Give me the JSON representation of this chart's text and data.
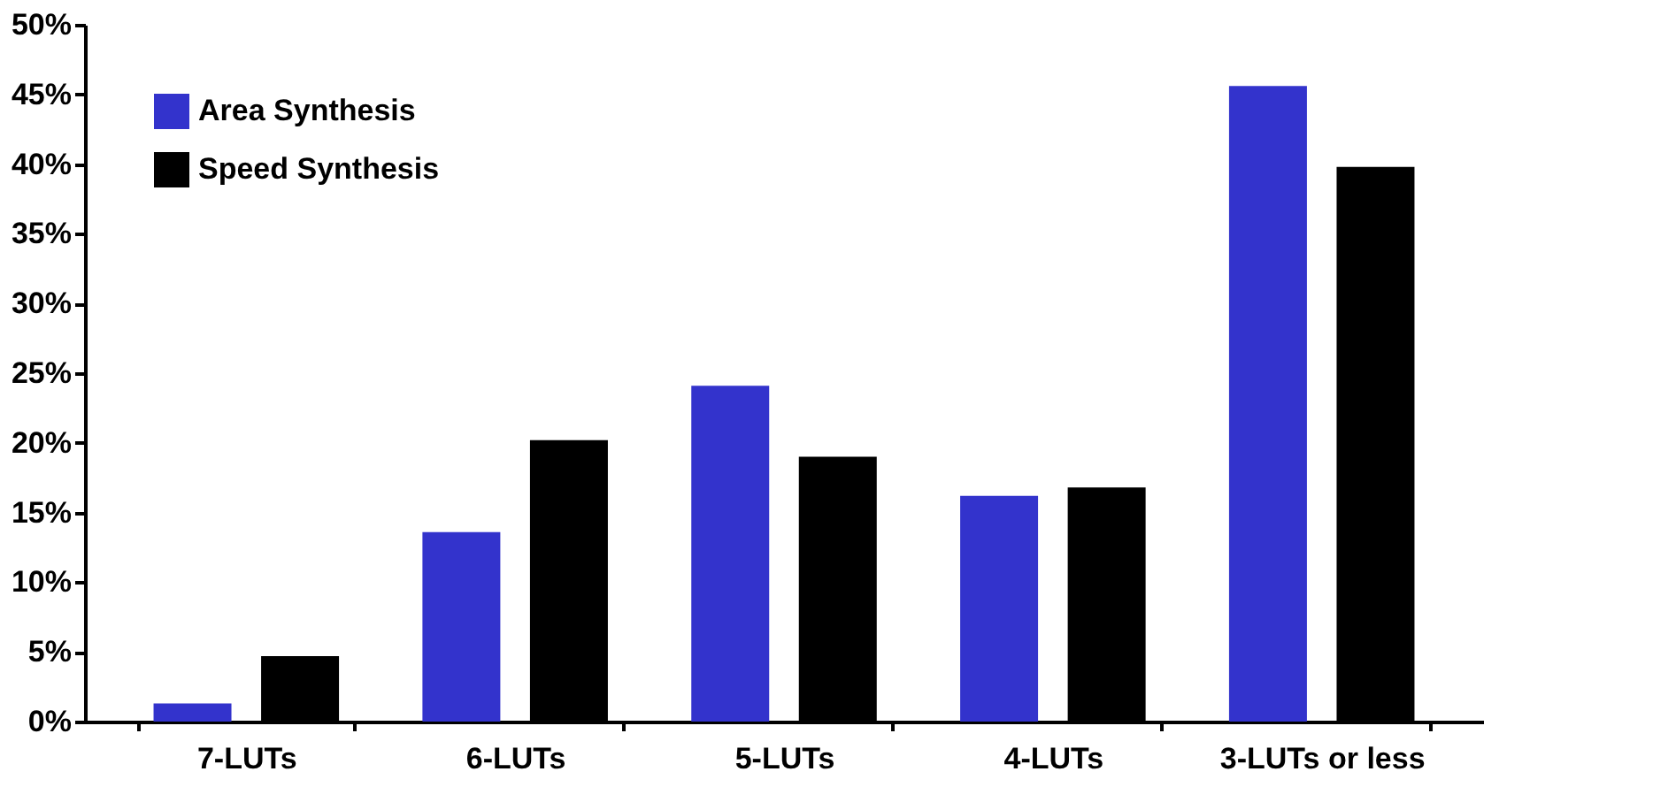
{
  "chart_data": {
    "type": "bar",
    "categories": [
      "7-LUTs",
      "6-LUTs",
      "5-LUTs",
      "4-LUTs",
      "3-LUTs or less"
    ],
    "series": [
      {
        "name": "Area Synthesis",
        "color": "#3333cc",
        "values": [
          1.3,
          13.6,
          24.1,
          16.2,
          45.6
        ]
      },
      {
        "name": "Speed Synthesis",
        "color": "#000000",
        "values": [
          4.7,
          20.2,
          19.0,
          16.8,
          39.8
        ]
      }
    ],
    "ylim": [
      0,
      50
    ],
    "yticks": [
      {
        "value": 0,
        "label": "0%"
      },
      {
        "value": 5,
        "label": "5%"
      },
      {
        "value": 10,
        "label": "10%"
      },
      {
        "value": 15,
        "label": "15%"
      },
      {
        "value": 20,
        "label": "20%"
      },
      {
        "value": 25,
        "label": "25%"
      },
      {
        "value": 30,
        "label": "30%"
      },
      {
        "value": 35,
        "label": "35%"
      },
      {
        "value": 40,
        "label": "40%"
      },
      {
        "value": 45,
        "label": "45%"
      },
      {
        "value": 50,
        "label": "50%"
      }
    ],
    "grid": false,
    "legend": "top left"
  }
}
